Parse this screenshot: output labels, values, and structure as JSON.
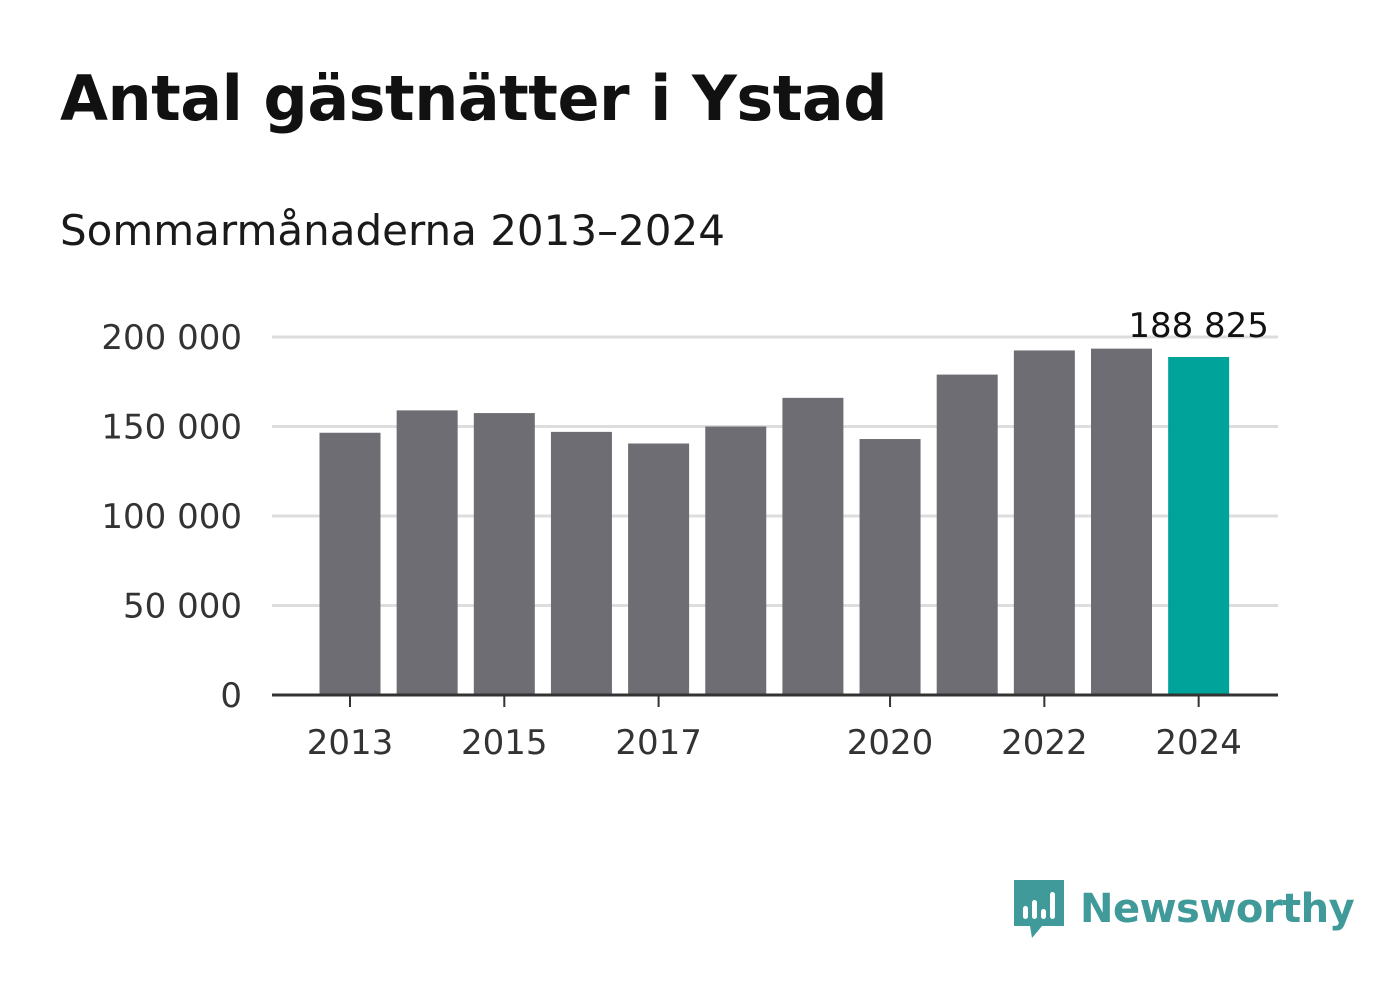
{
  "title": "Antal gästnätter i Ystad",
  "subtitle": "Sommarmånaderna 2013–2024",
  "highlight_label": "188 825",
  "brand": "Newsworthy",
  "colors": {
    "bar": "#6e6d73",
    "highlight": "#00a39a",
    "grid": "#dddddd",
    "axis": "#333333",
    "brand": "#3f9a99"
  },
  "chart_data": {
    "type": "bar",
    "categories": [
      "2013",
      "2014",
      "2015",
      "2016",
      "2017",
      "2018",
      "2019",
      "2020",
      "2021",
      "2022",
      "2023",
      "2024"
    ],
    "values": [
      146500,
      159000,
      157500,
      147000,
      140500,
      150000,
      166000,
      143000,
      179000,
      192500,
      193500,
      188825
    ],
    "x_tick_labels": [
      "2013",
      "2015",
      "2017",
      "2020",
      "2022",
      "2024"
    ],
    "y_ticks": [
      0,
      50000,
      100000,
      150000,
      200000
    ],
    "y_tick_labels": [
      "0",
      "50 000",
      "100 000",
      "150 000",
      "200 000"
    ],
    "ylim": [
      0,
      200000
    ],
    "highlight_category": "2024",
    "grid": true,
    "xlabel": "",
    "ylabel": ""
  }
}
